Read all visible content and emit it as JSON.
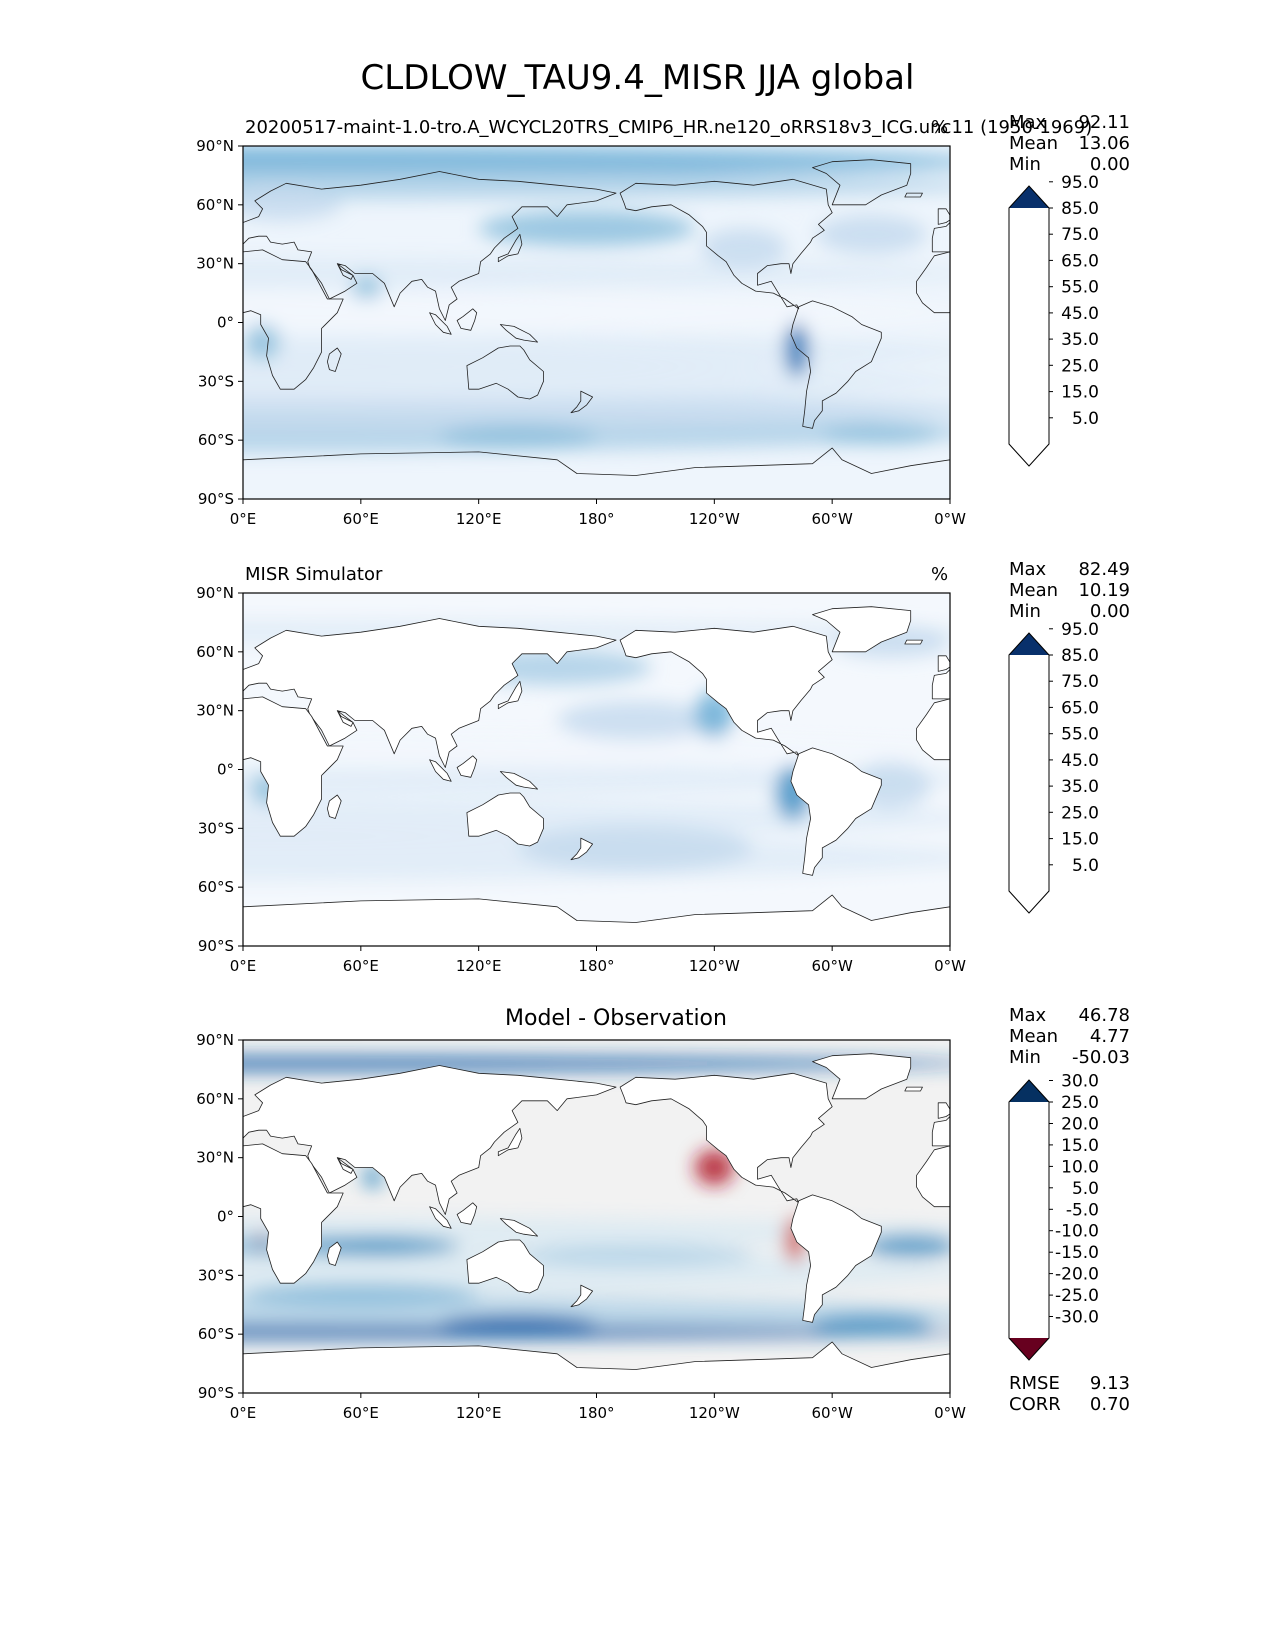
{
  "title": "CLDLOW_TAU9.4_MISR JJA global",
  "map_axes": {
    "lon_ticks": [
      "0°E",
      "60°E",
      "120°E",
      "180°",
      "120°W",
      "60°W",
      "0°W"
    ],
    "lat_ticks": [
      "90°N",
      "60°N",
      "30°N",
      "0°",
      "30°S",
      "60°S",
      "90°S"
    ]
  },
  "panels": [
    {
      "id": "test",
      "title_left": "20200517-maint-1.0-tro.A_WCYCL20TRS_CMIP6_HR.ne120_oRRS18v3_ICG.unc11 (1950-1969)",
      "units": "%",
      "stats": {
        "max_label": "Max",
        "max": "92.11",
        "mean_label": "Mean",
        "mean": "13.06",
        "min_label": "Min",
        "min": "0.00"
      },
      "colorbar": {
        "colors": [
          "#ffffff",
          "#f2f7fd",
          "#deebf7",
          "#c6dbef",
          "#abcfe6",
          "#8dc0dd",
          "#6baed6",
          "#4192c6",
          "#2171b5",
          "#0b55a0",
          "#08306b"
        ],
        "labels": [
          "5.0",
          "15.0",
          "25.0",
          "35.0",
          "45.0",
          "55.0",
          "65.0",
          "75.0",
          "85.0",
          "95.0"
        ]
      }
    },
    {
      "id": "reference",
      "title_left": "MISR Simulator",
      "units": "%",
      "stats": {
        "max_label": "Max",
        "max": "82.49",
        "mean_label": "Mean",
        "mean": "10.19",
        "min_label": "Min",
        "min": "0.00"
      },
      "colorbar": {
        "colors": [
          "#ffffff",
          "#f2f7fd",
          "#deebf7",
          "#c6dbef",
          "#abcfe6",
          "#8dc0dd",
          "#6baed6",
          "#4192c6",
          "#2171b5",
          "#0b55a0",
          "#08306b"
        ],
        "labels": [
          "5.0",
          "15.0",
          "25.0",
          "35.0",
          "45.0",
          "55.0",
          "65.0",
          "75.0",
          "85.0",
          "95.0"
        ]
      }
    },
    {
      "id": "difference",
      "title_center": "Model - Observation",
      "stats": {
        "max_label": "Max",
        "max": "46.78",
        "mean_label": "Mean",
        "mean": "4.77",
        "min_label": "Min",
        "min": "-50.03"
      },
      "colorbar": {
        "colors": [
          "#67001f",
          "#b2182b",
          "#cf4a42",
          "#e58267",
          "#f4a582",
          "#fbdac8",
          "#f7f7f7",
          "#dbeaf2",
          "#b5d4e7",
          "#86bad9",
          "#4393c3",
          "#2166ac",
          "#053061"
        ],
        "labels": [
          "-30.0",
          "-25.0",
          "-20.0",
          "-15.0",
          "-10.0",
          "-5.0",
          "5.0",
          "10.0",
          "15.0",
          "20.0",
          "25.0",
          "30.0"
        ]
      },
      "metrics": {
        "rmse_label": "RMSE",
        "rmse": "9.13",
        "corr_label": "CORR",
        "corr": "0.70"
      }
    }
  ]
}
